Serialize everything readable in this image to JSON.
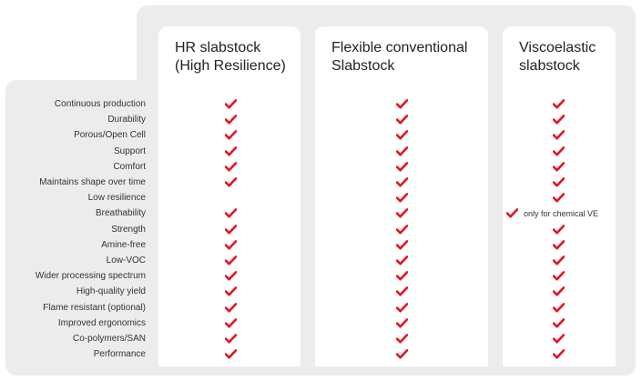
{
  "headers": [
    "HR slabstock\n(High Resilience)",
    "Flexible conventional\nSlabstock",
    "Viscoelastic\nslabstock"
  ],
  "check_color": "#e3161f",
  "check_icon": "checkmark-icon",
  "rows": [
    {
      "label": "Continuous production",
      "cells": [
        true,
        true,
        true
      ],
      "note": ""
    },
    {
      "label": "Durability",
      "cells": [
        true,
        true,
        true
      ],
      "note": ""
    },
    {
      "label": "Porous/Open Cell",
      "cells": [
        true,
        true,
        true
      ],
      "note": ""
    },
    {
      "label": "Support",
      "cells": [
        true,
        true,
        true
      ],
      "note": ""
    },
    {
      "label": "Comfort",
      "cells": [
        true,
        true,
        true
      ],
      "note": ""
    },
    {
      "label": "Maintains shape over time",
      "cells": [
        true,
        true,
        true
      ],
      "note": ""
    },
    {
      "label": "Low resilience",
      "cells": [
        false,
        true,
        true
      ],
      "note": ""
    },
    {
      "label": "Breathability",
      "cells": [
        true,
        true,
        true
      ],
      "note": "only for chemical VE"
    },
    {
      "label": "Strength",
      "cells": [
        true,
        true,
        true
      ],
      "note": ""
    },
    {
      "label": "Amine-free",
      "cells": [
        true,
        true,
        true
      ],
      "note": ""
    },
    {
      "label": "Low-VOC",
      "cells": [
        true,
        true,
        true
      ],
      "note": ""
    },
    {
      "label": "Wider processing spectrum",
      "cells": [
        true,
        true,
        true
      ],
      "note": ""
    },
    {
      "label": "High-quality yield",
      "cells": [
        true,
        true,
        true
      ],
      "note": ""
    },
    {
      "label": "Flame resistant (optional)",
      "cells": [
        true,
        true,
        true
      ],
      "note": ""
    },
    {
      "label": "Improved ergonomics",
      "cells": [
        true,
        true,
        true
      ],
      "note": ""
    },
    {
      "label": "Co-polymers/SAN",
      "cells": [
        true,
        true,
        true
      ],
      "note": ""
    },
    {
      "label": "Performance",
      "cells": [
        true,
        true,
        true
      ],
      "note": ""
    }
  ]
}
